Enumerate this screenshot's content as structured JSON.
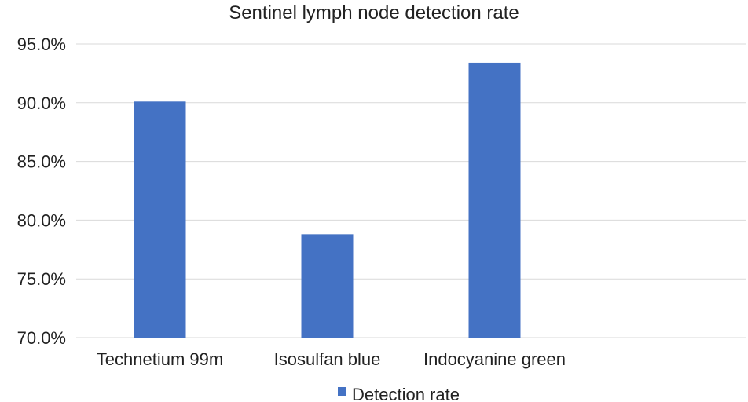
{
  "chart_data": {
    "type": "bar",
    "title": "Sentinel lymph node detection rate",
    "categories": [
      "Technetium 99m",
      "Isosulfan blue",
      "Indocyanine green"
    ],
    "series": [
      {
        "name": "Detection rate",
        "values": [
          90.1,
          78.8,
          93.4
        ],
        "color": "#4472c4"
      }
    ],
    "ylim": [
      70,
      95
    ],
    "yticks": [
      70,
      75,
      80,
      85,
      90,
      95
    ],
    "ytick_labels": [
      "70.0%",
      "75.0%",
      "80.0%",
      "85.0%",
      "90.0%",
      "95.0%"
    ],
    "grid": true,
    "legend_position": "bottom",
    "xlabel": "",
    "ylabel": ""
  }
}
